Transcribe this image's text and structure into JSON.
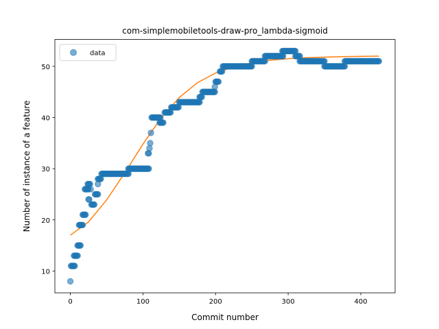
{
  "chart_data": {
    "type": "scatter",
    "title": "com-simplemobiletools-draw-pro_lambda-sigmoid",
    "xlabel": "Commit number",
    "ylabel": "Number of instance of a feature",
    "xlim": [
      -21.3,
      447.3
    ],
    "ylim": [
      5.75,
      55.25
    ],
    "xticks": [
      0,
      100,
      200,
      300,
      400
    ],
    "yticks": [
      10,
      20,
      30,
      40,
      50
    ],
    "grid": false,
    "legend": {
      "position": "top-left",
      "entries": [
        "data"
      ]
    },
    "colors": {
      "data": "#1f77b4",
      "fit": "#ff7f0e"
    },
    "series": [
      {
        "name": "data",
        "kind": "scatter",
        "segments": [
          {
            "x_start": 0,
            "x_end": 0,
            "y": 8
          },
          {
            "x_start": 1,
            "x_end": 6,
            "y": 11
          },
          {
            "x_start": 5,
            "x_end": 10,
            "y": 13
          },
          {
            "x_start": 10,
            "x_end": 14,
            "y": 15
          },
          {
            "x_start": 12,
            "x_end": 17,
            "y": 19
          },
          {
            "x_start": 17,
            "x_end": 21,
            "y": 21
          },
          {
            "x_start": 20,
            "x_end": 25,
            "y": 26
          },
          {
            "x_start": 24,
            "x_end": 27,
            "y": 27
          },
          {
            "x_start": 25,
            "x_end": 26,
            "y": 24
          },
          {
            "x_start": 28,
            "x_end": 28,
            "y": 26
          },
          {
            "x_start": 29,
            "x_end": 33,
            "y": 23
          },
          {
            "x_start": 34,
            "x_end": 38,
            "y": 25
          },
          {
            "x_start": 38,
            "x_end": 38,
            "y": 27
          },
          {
            "x_start": 38,
            "x_end": 42,
            "y": 28
          },
          {
            "x_start": 43,
            "x_end": 80,
            "y": 29
          },
          {
            "x_start": 80,
            "x_end": 108,
            "y": 30
          },
          {
            "x_start": 107,
            "x_end": 108,
            "y": 33
          },
          {
            "x_start": 109,
            "x_end": 109,
            "y": 34
          },
          {
            "x_start": 110,
            "x_end": 110,
            "y": 35
          },
          {
            "x_start": 111,
            "x_end": 111,
            "y": 37
          },
          {
            "x_start": 112,
            "x_end": 124,
            "y": 40
          },
          {
            "x_start": 123,
            "x_end": 128,
            "y": 39
          },
          {
            "x_start": 130,
            "x_end": 138,
            "y": 41
          },
          {
            "x_start": 139,
            "x_end": 149,
            "y": 42
          },
          {
            "x_start": 150,
            "x_end": 178,
            "y": 43
          },
          {
            "x_start": 178,
            "x_end": 181,
            "y": 44
          },
          {
            "x_start": 182,
            "x_end": 199,
            "y": 45
          },
          {
            "x_start": 199,
            "x_end": 199,
            "y": 46
          },
          {
            "x_start": 200,
            "x_end": 204,
            "y": 47
          },
          {
            "x_start": 206,
            "x_end": 209,
            "y": 49
          },
          {
            "x_start": 210,
            "x_end": 250,
            "y": 50
          },
          {
            "x_start": 250,
            "x_end": 268,
            "y": 51
          },
          {
            "x_start": 268,
            "x_end": 293,
            "y": 52
          },
          {
            "x_start": 292,
            "x_end": 310,
            "y": 53
          },
          {
            "x_start": 310,
            "x_end": 316,
            "y": 52
          },
          {
            "x_start": 316,
            "x_end": 350,
            "y": 51
          },
          {
            "x_start": 350,
            "x_end": 378,
            "y": 50
          },
          {
            "x_start": 378,
            "x_end": 425,
            "y": 51
          }
        ]
      },
      {
        "name": "fit",
        "kind": "line",
        "x": [
          0,
          25,
          50,
          75,
          100,
          125,
          150,
          175,
          200,
          225,
          250,
          275,
          300,
          325,
          350,
          375,
          400,
          425
        ],
        "y": [
          17.0,
          19.6,
          23.9,
          29.2,
          34.8,
          39.9,
          43.9,
          46.8,
          48.7,
          49.9,
          50.7,
          51.2,
          51.5,
          51.7,
          51.8,
          51.9,
          51.95,
          52.0
        ]
      }
    ]
  }
}
